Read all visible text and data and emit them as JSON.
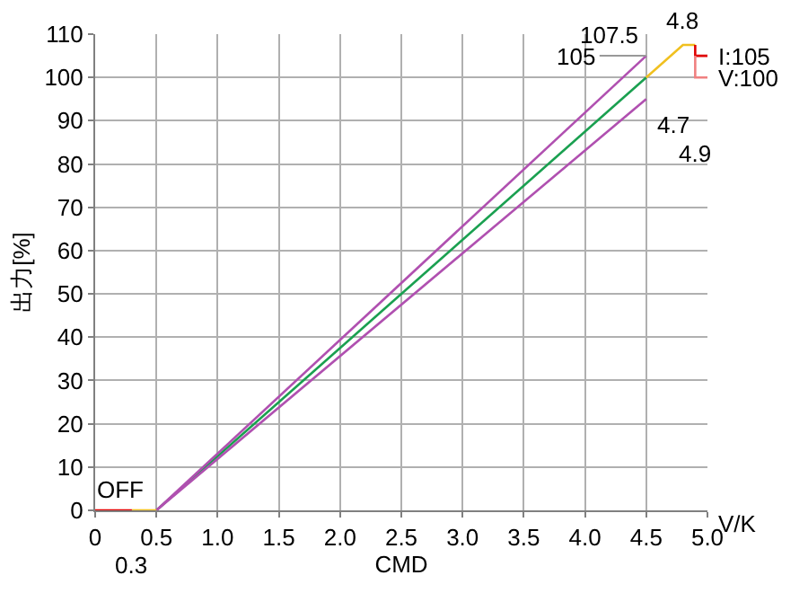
{
  "chart_data": {
    "type": "line",
    "xlabel": "CMD",
    "ylabel": "出力[%]",
    "series": [
      {
        "color": "#1aa050",
        "x": [
          0.5,
          4.5
        ],
        "values": [
          0,
          100
        ]
      },
      {
        "color": "#b050b0",
        "x": [
          0.5,
          4.5
        ],
        "values": [
          0,
          105
        ]
      },
      {
        "color": "#b050b0",
        "x": [
          0.5,
          4.5
        ],
        "values": [
          0,
          95
        ]
      },
      {
        "color": "#f0c020",
        "x": [
          4.5,
          4.8,
          4.9
        ],
        "values": [
          100,
          107.5,
          107.5
        ]
      },
      {
        "color": "#f0c020",
        "x": [
          0.3,
          0.5
        ],
        "values": [
          0,
          0
        ]
      },
      {
        "color": "#e00000",
        "x": [
          0,
          0.3
        ],
        "values": [
          0,
          0
        ]
      },
      {
        "color": "#e00000",
        "x": [
          4.9,
          4.9,
          5.0
        ],
        "values": [
          107.5,
          105,
          105
        ]
      },
      {
        "color": "#f08080",
        "x": [
          4.9,
          4.9,
          5.0
        ],
        "values": [
          105,
          100,
          100
        ]
      }
    ],
    "xlim": [
      0,
      5.0
    ],
    "xticks": [
      0,
      0.5,
      {
        "value": 1,
        "label": "1.0"
      },
      1.5,
      {
        "value": 2,
        "label": "2.0"
      },
      2.5,
      {
        "value": 3,
        "label": "3.0"
      },
      3.5,
      {
        "value": 4,
        "label": "4.0"
      },
      4.5,
      {
        "value": 5,
        "label": "5.0"
      }
    ],
    "ylim": [
      0,
      110
    ],
    "yticks": [
      0,
      10,
      20,
      30,
      40,
      50,
      60,
      70,
      80,
      90,
      100,
      110
    ],
    "grid": true,
    "marker": "none",
    "line_style": "solid",
    "annotations": [
      {
        "text": "105",
        "x": 4.5,
        "y": 105
      },
      {
        "text": "107.5",
        "x": 4.8,
        "y": 107.5
      },
      {
        "text": "4.7",
        "x": 4.5,
        "y": 95
      },
      {
        "text": "4.8",
        "x": 4.8,
        "y": 107.5
      },
      {
        "text": "4.9",
        "x": 4.9,
        "y": 100
      },
      {
        "text": "I:105",
        "x": 5.0,
        "y": 105
      },
      {
        "text": "V:100",
        "x": 5.0,
        "y": 100
      },
      {
        "text": "OFF",
        "x": 0.15,
        "y": 0
      },
      {
        "text": "0.3",
        "x": 0.3,
        "y": 0
      },
      "V/K"
    ]
  }
}
